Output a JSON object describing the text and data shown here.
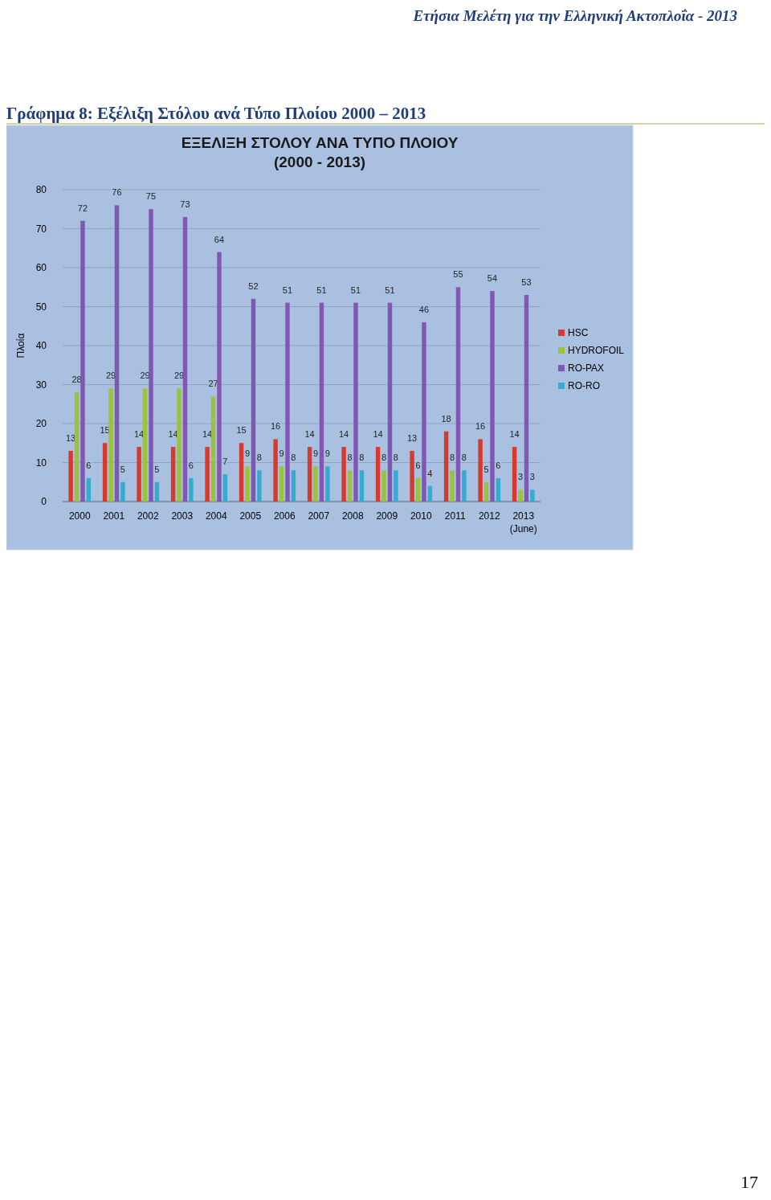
{
  "chart_data": {
    "type": "bar",
    "title": "ΕΞΕΛΙΞΗ ΣΤΟΛΟΥ ΑΝΑ ΤΥΠΟ ΠΛΟΙΟΥ\n(2000 - 2013)",
    "ylabel": "Πλοία",
    "annotations": [
      "Ετήσια Μελέτη για την Ελληνική Ακτοπλοΐα - 2013",
      "Γράφημα 8: Εξέλιξη Στόλου ανά Τύπο Πλοίου 2000 – 2013",
      "17"
    ],
    "categories": [
      "2000",
      "2001",
      "2002",
      "2003",
      "2004",
      "2005",
      "2006",
      "2007",
      "2008",
      "2009",
      "2010",
      "2011",
      "2012",
      "2013\n(June)"
    ],
    "series": [
      {
        "name": "HSC",
        "color": "#d63a2f",
        "values": [
          13,
          15,
          14,
          14,
          14,
          15,
          16,
          14,
          14,
          14,
          13,
          18,
          16,
          14
        ]
      },
      {
        "name": "HYDROFOIL",
        "color": "#9cc23c",
        "values": [
          28,
          29,
          29,
          29,
          27,
          9,
          9,
          9,
          8,
          8,
          6,
          8,
          5,
          3
        ]
      },
      {
        "name": "RO-PAX",
        "color": "#8058b4",
        "values": [
          72,
          76,
          75,
          73,
          64,
          52,
          51,
          51,
          51,
          51,
          46,
          55,
          54,
          53
        ]
      },
      {
        "name": "RO-RO",
        "color": "#35abd0",
        "values": [
          6,
          5,
          5,
          6,
          7,
          8,
          8,
          9,
          8,
          8,
          4,
          8,
          6,
          3
        ]
      }
    ],
    "ylim": [
      0,
      80
    ],
    "yticks": [
      0,
      10,
      20,
      30,
      40,
      50,
      60,
      70,
      80
    ],
    "grid": "y",
    "legend": "right",
    "data_labels": true
  }
}
